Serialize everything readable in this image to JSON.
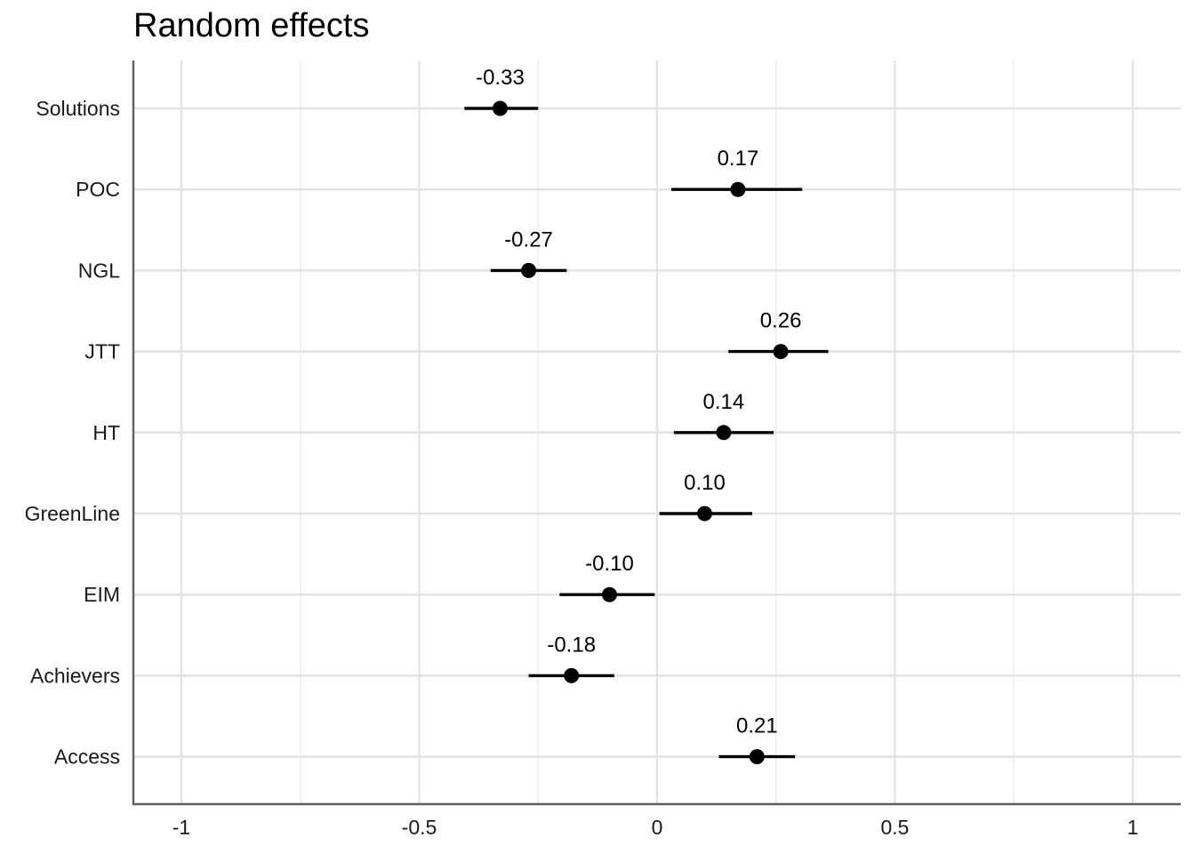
{
  "chart_data": {
    "type": "scatter",
    "title": "Random effects",
    "xlabel": "",
    "ylabel": "",
    "xlim": [
      -1.1,
      1.1
    ],
    "x_ticks": [
      -1,
      -0.5,
      0,
      0.5,
      1
    ],
    "x_tick_labels": [
      "-1",
      "-0.5",
      "0",
      "0.5",
      "1"
    ],
    "grid": true,
    "categories": [
      "Solutions",
      "POC",
      "NGL",
      "JTT",
      "HT",
      "GreenLine",
      "EIM",
      "Achievers",
      "Access"
    ],
    "estimates": [
      -0.33,
      0.17,
      -0.27,
      0.26,
      0.14,
      0.1,
      -0.1,
      -0.18,
      0.21
    ],
    "labels": [
      "-0.33",
      "0.17",
      "-0.27",
      "0.26",
      "0.14",
      "0.10",
      "-0.10",
      "-0.18",
      "0.21"
    ],
    "ci_low": [
      -0.405,
      0.03,
      -0.35,
      0.15,
      0.035,
      0.005,
      -0.205,
      -0.27,
      0.13
    ],
    "ci_high": [
      -0.25,
      0.305,
      -0.19,
      0.36,
      0.245,
      0.2,
      -0.005,
      -0.09,
      0.29
    ]
  }
}
